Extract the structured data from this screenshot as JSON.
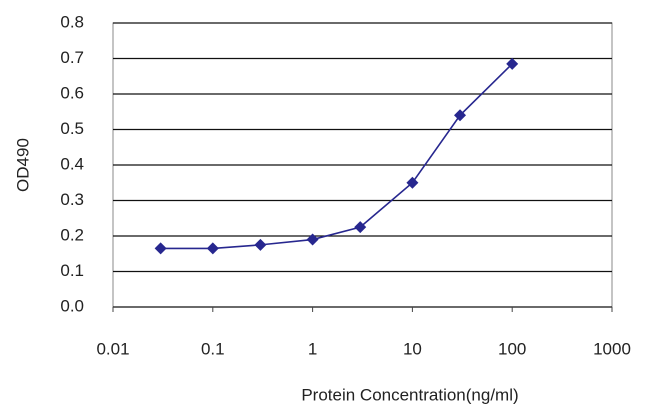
{
  "chart_data": {
    "type": "line",
    "xlabel": "Protein Concentration(ng/ml)",
    "ylabel": "OD490",
    "x": [
      0.03,
      0.1,
      0.3,
      1,
      3,
      10,
      30,
      100
    ],
    "series": [
      {
        "color": "#27278f",
        "values": [
          0.165,
          0.165,
          0.175,
          0.19,
          0.225,
          0.35,
          0.54,
          0.685
        ]
      }
    ],
    "xlim": [
      0.01,
      1000
    ],
    "xticks": [
      0.01,
      0.1,
      1,
      10,
      100,
      1000
    ],
    "xscale": "log",
    "ylim": [
      0,
      0.8
    ],
    "yticks": [
      {
        "value": 0,
        "label": "0.0"
      },
      0.1,
      0.2,
      0.3,
      0.4,
      0.5,
      0.6,
      0.7,
      0.8
    ],
    "grid": true
  }
}
